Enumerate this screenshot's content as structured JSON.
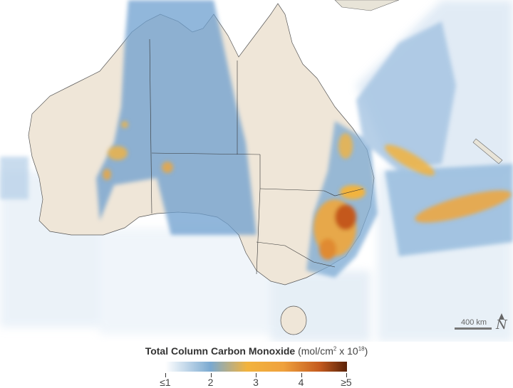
{
  "legend": {
    "title": "Total Column Carbon Monoxide",
    "unit_prefix": "(mol/cm",
    "unit_sup1": "2",
    "unit_mid": " x 10",
    "unit_sup2": "18",
    "unit_suffix": ")",
    "ticks": [
      "≤1",
      "2",
      "3",
      "4",
      "≥5"
    ],
    "range": [
      1,
      5
    ],
    "colors": [
      "#ffffff",
      "#7aa9d0",
      "#f2b33d",
      "#c45a1e",
      "#5a2208"
    ]
  },
  "scale_bar": {
    "label": "400 km"
  },
  "north_arrow": {
    "label": "N"
  },
  "map": {
    "land_color": "#efe6d8",
    "ocean_color": "#ffffff"
  }
}
